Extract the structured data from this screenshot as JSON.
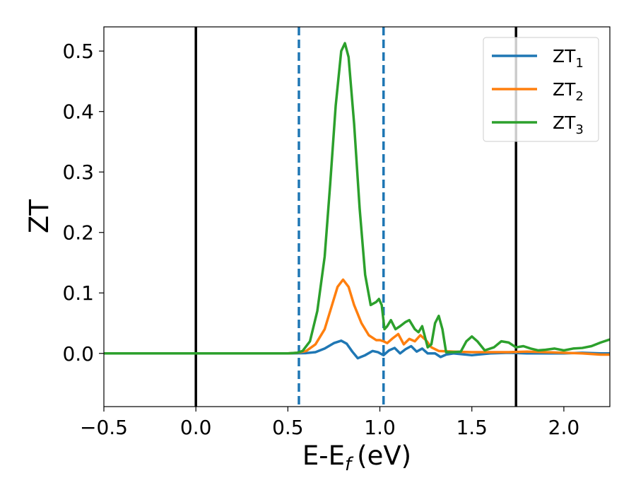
{
  "chart_data": {
    "type": "line",
    "xlabel": "E-E",
    "xlabel_sub": "f",
    "xlabel_unit": "(eV)",
    "ylabel": "ZT",
    "xlim": [
      -0.5,
      2.25
    ],
    "ylim": [
      -0.088,
      0.54
    ],
    "xticks": [
      -0.5,
      0.0,
      0.5,
      1.0,
      1.5,
      2.0
    ],
    "xtick_labels": [
      "−0.5",
      "0.0",
      "0.5",
      "1.0",
      "1.5",
      "2.0"
    ],
    "yticks": [
      0.0,
      0.1,
      0.2,
      0.3,
      0.4,
      0.5
    ],
    "ytick_labels": [
      "0.0",
      "0.1",
      "0.2",
      "0.3",
      "0.4",
      "0.5"
    ],
    "grid": false,
    "legend_position": "top-right",
    "vlines": [
      {
        "x": 0.0,
        "style": "solid",
        "color": "#000000"
      },
      {
        "x": 1.74,
        "style": "solid",
        "color": "#000000"
      },
      {
        "x": 0.56,
        "style": "dashed",
        "color": "#1f77b4"
      },
      {
        "x": 1.02,
        "style": "dashed",
        "color": "#1f77b4"
      }
    ],
    "series": [
      {
        "name": "ZT",
        "name_sub": "1",
        "color": "#1f77b4",
        "points": [
          [
            -0.5,
            0
          ],
          [
            0.5,
            0
          ],
          [
            0.6,
            0.0005
          ],
          [
            0.65,
            0.002
          ],
          [
            0.7,
            0.008
          ],
          [
            0.75,
            0.017
          ],
          [
            0.79,
            0.021
          ],
          [
            0.82,
            0.016
          ],
          [
            0.85,
            0.003
          ],
          [
            0.88,
            -0.008
          ],
          [
            0.92,
            -0.003
          ],
          [
            0.96,
            0.004
          ],
          [
            0.99,
            0.002
          ],
          [
            1.02,
            -0.003
          ],
          [
            1.05,
            0.005
          ],
          [
            1.08,
            0.009
          ],
          [
            1.11,
            0.0
          ],
          [
            1.14,
            0.007
          ],
          [
            1.17,
            0.012
          ],
          [
            1.2,
            0.003
          ],
          [
            1.23,
            0.008
          ],
          [
            1.26,
            0.0
          ],
          [
            1.3,
            0.0
          ],
          [
            1.33,
            -0.006
          ],
          [
            1.36,
            -0.002
          ],
          [
            1.4,
            0.0
          ],
          [
            1.5,
            -0.003
          ],
          [
            1.6,
            0.0
          ],
          [
            1.7,
            0.001
          ],
          [
            1.8,
            0.0
          ],
          [
            1.9,
            0.0
          ],
          [
            2.0,
            0.0
          ],
          [
            2.1,
            0.001
          ],
          [
            2.2,
            0.0
          ],
          [
            2.25,
            0.0
          ]
        ]
      },
      {
        "name": "ZT",
        "name_sub": "2",
        "color": "#ff7f0e",
        "points": [
          [
            -0.5,
            0
          ],
          [
            0.5,
            0
          ],
          [
            0.55,
            0.001
          ],
          [
            0.6,
            0.004
          ],
          [
            0.65,
            0.015
          ],
          [
            0.7,
            0.04
          ],
          [
            0.74,
            0.08
          ],
          [
            0.77,
            0.11
          ],
          [
            0.8,
            0.122
          ],
          [
            0.83,
            0.11
          ],
          [
            0.86,
            0.08
          ],
          [
            0.9,
            0.05
          ],
          [
            0.94,
            0.03
          ],
          [
            0.98,
            0.022
          ],
          [
            1.0,
            0.022
          ],
          [
            1.02,
            0.02
          ],
          [
            1.04,
            0.017
          ],
          [
            1.07,
            0.025
          ],
          [
            1.1,
            0.032
          ],
          [
            1.13,
            0.015
          ],
          [
            1.16,
            0.024
          ],
          [
            1.19,
            0.02
          ],
          [
            1.22,
            0.03
          ],
          [
            1.25,
            0.022
          ],
          [
            1.28,
            0.01
          ],
          [
            1.32,
            0.004
          ],
          [
            1.4,
            0.003
          ],
          [
            1.5,
            0.002
          ],
          [
            1.6,
            0.002
          ],
          [
            1.7,
            0.002
          ],
          [
            1.8,
            0.003
          ],
          [
            1.9,
            0.002
          ],
          [
            2.0,
            0.001
          ],
          [
            2.1,
            0.0
          ],
          [
            2.2,
            -0.002
          ],
          [
            2.25,
            -0.002
          ]
        ]
      },
      {
        "name": "ZT",
        "name_sub": "3",
        "color": "#2ca02c",
        "points": [
          [
            -0.5,
            0
          ],
          [
            0.5,
            0
          ],
          [
            0.55,
            0.001
          ],
          [
            0.58,
            0.004
          ],
          [
            0.62,
            0.02
          ],
          [
            0.66,
            0.07
          ],
          [
            0.7,
            0.16
          ],
          [
            0.73,
            0.28
          ],
          [
            0.76,
            0.41
          ],
          [
            0.79,
            0.5
          ],
          [
            0.81,
            0.513
          ],
          [
            0.83,
            0.49
          ],
          [
            0.86,
            0.38
          ],
          [
            0.89,
            0.24
          ],
          [
            0.92,
            0.13
          ],
          [
            0.95,
            0.08
          ],
          [
            0.98,
            0.085
          ],
          [
            0.995,
            0.09
          ],
          [
            1.01,
            0.08
          ],
          [
            1.025,
            0.04
          ],
          [
            1.04,
            0.045
          ],
          [
            1.06,
            0.055
          ],
          [
            1.085,
            0.04
          ],
          [
            1.11,
            0.045
          ],
          [
            1.14,
            0.052
          ],
          [
            1.16,
            0.055
          ],
          [
            1.19,
            0.04
          ],
          [
            1.21,
            0.035
          ],
          [
            1.23,
            0.045
          ],
          [
            1.26,
            0.01
          ],
          [
            1.28,
            0.015
          ],
          [
            1.3,
            0.05
          ],
          [
            1.32,
            0.062
          ],
          [
            1.34,
            0.04
          ],
          [
            1.36,
            0.002
          ],
          [
            1.4,
            0.002
          ],
          [
            1.44,
            0.003
          ],
          [
            1.47,
            0.02
          ],
          [
            1.5,
            0.028
          ],
          [
            1.53,
            0.02
          ],
          [
            1.57,
            0.005
          ],
          [
            1.62,
            0.01
          ],
          [
            1.66,
            0.02
          ],
          [
            1.7,
            0.018
          ],
          [
            1.74,
            0.01
          ],
          [
            1.78,
            0.012
          ],
          [
            1.82,
            0.008
          ],
          [
            1.86,
            0.005
          ],
          [
            1.9,
            0.006
          ],
          [
            1.95,
            0.008
          ],
          [
            2.0,
            0.005
          ],
          [
            2.05,
            0.008
          ],
          [
            2.1,
            0.009
          ],
          [
            2.15,
            0.012
          ],
          [
            2.2,
            0.018
          ],
          [
            2.25,
            0.023
          ]
        ]
      }
    ]
  }
}
